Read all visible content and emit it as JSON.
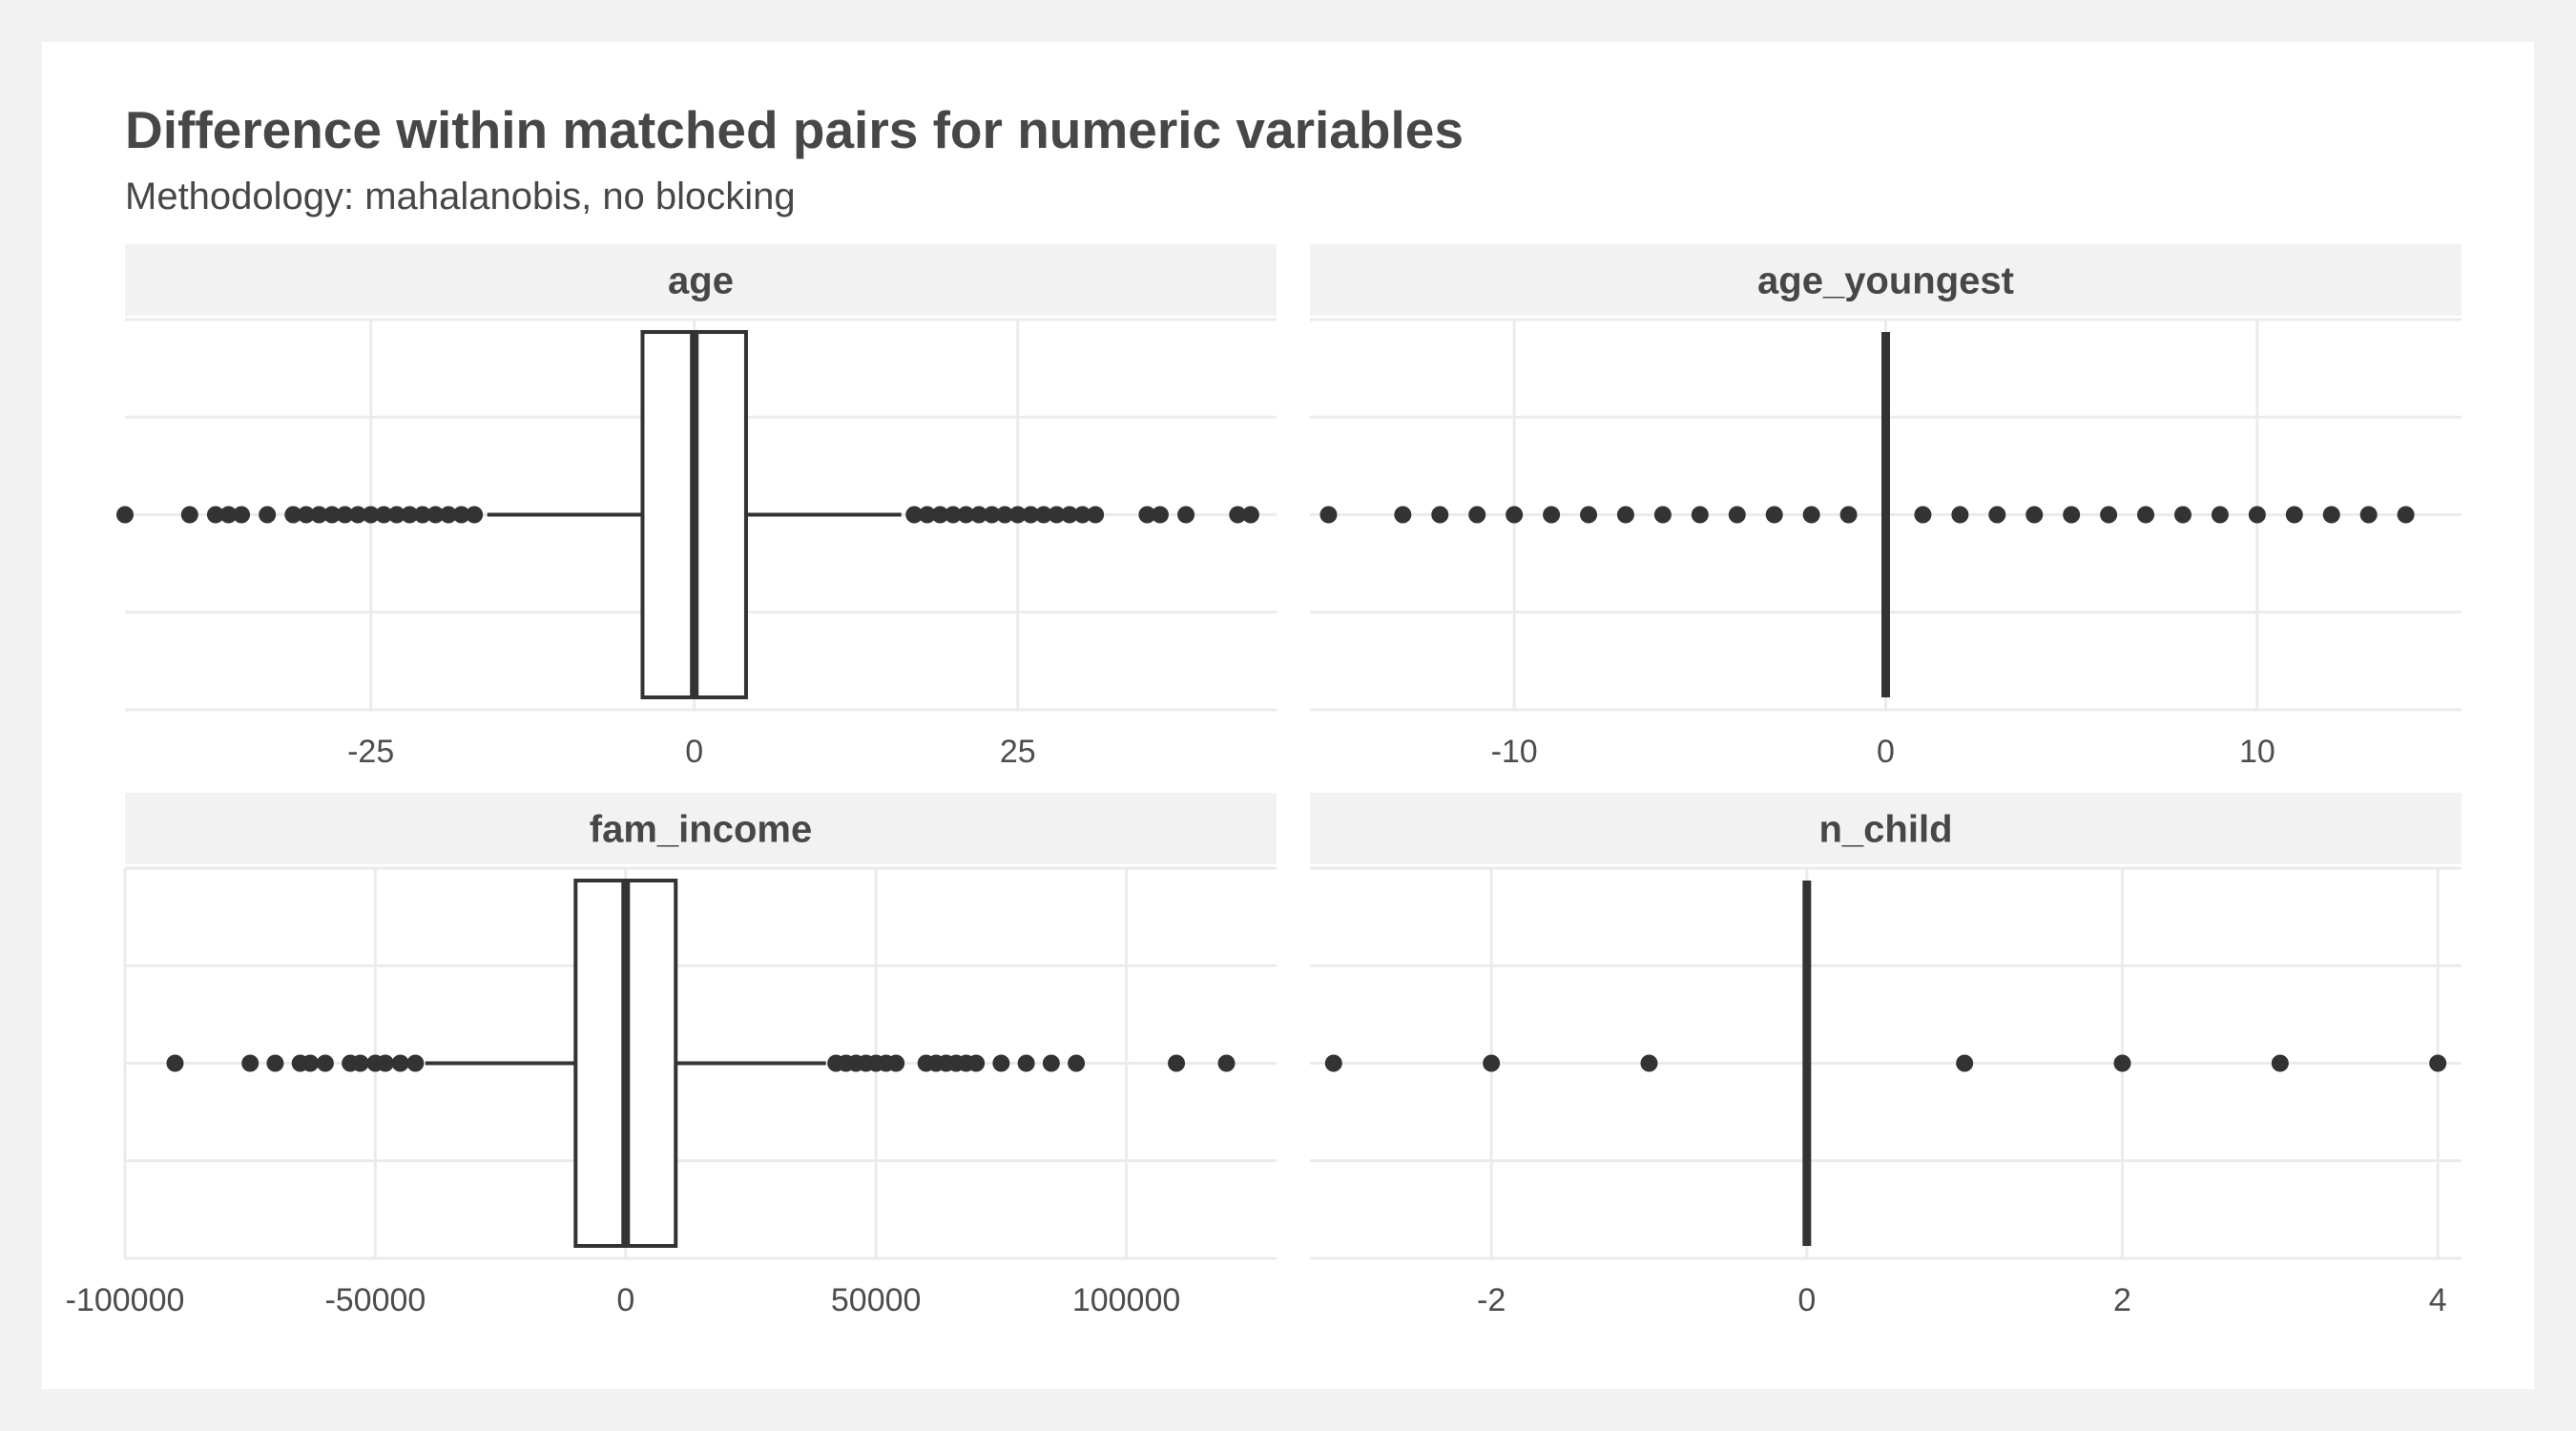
{
  "title": "Difference within matched pairs for numeric variables",
  "subtitle": "Methodology: mahalanobis, no blocking",
  "colors": {
    "background": "#f2f2f2",
    "panel": "#ffffff",
    "strip": "#f2f2f2",
    "grid": "#ebebeb",
    "ink": "#333333",
    "text": "#474747"
  },
  "chart_data": [
    {
      "type": "boxplot",
      "panel": "age",
      "xlim": [
        -44,
        45
      ],
      "ticks": [
        -25,
        0,
        25
      ],
      "tick_labels": [
        "-25",
        "0",
        "25"
      ],
      "box": {
        "q1": -4,
        "median": 0,
        "q3": 4,
        "whisker_low": -16,
        "whisker_high": 16
      },
      "outliers": [
        -44,
        -39,
        -37,
        -36,
        -35,
        -33,
        -31,
        -30,
        -29,
        -28,
        -27,
        -26,
        -25,
        -24,
        -23,
        -22,
        -21,
        -20,
        -19,
        -18,
        -17,
        17,
        18,
        19,
        20,
        21,
        22,
        23,
        24,
        25,
        26,
        27,
        28,
        29,
        30,
        31,
        35,
        36,
        38,
        42,
        43
      ]
    },
    {
      "type": "boxplot",
      "panel": "age_youngest",
      "xlim": [
        -15.5,
        15.5
      ],
      "ticks": [
        -10,
        0,
        10
      ],
      "tick_labels": [
        "-10",
        "0",
        "10"
      ],
      "box": {
        "q1": 0,
        "median": 0,
        "q3": 0,
        "whisker_low": 0,
        "whisker_high": 0
      },
      "outliers": [
        -15,
        -13,
        -12,
        -11,
        -10,
        -9,
        -8,
        -7,
        -6,
        -5,
        -4,
        -3,
        -2,
        -1,
        1,
        2,
        3,
        4,
        5,
        6,
        7,
        8,
        9,
        10,
        11,
        12,
        13,
        14
      ]
    },
    {
      "type": "boxplot",
      "panel": "fam_income",
      "xlim": [
        -100000,
        130000
      ],
      "ticks": [
        -100000,
        -50000,
        0,
        50000,
        100000
      ],
      "tick_labels": [
        "-100000",
        "-50000",
        "0",
        "50000",
        "100000"
      ],
      "box": {
        "q1": -10000,
        "median": 0,
        "q3": 10000,
        "whisker_low": -40000,
        "whisker_high": 40000
      },
      "outliers": [
        -90000,
        -75000,
        -70000,
        -65000,
        -63000,
        -60000,
        -55000,
        -53000,
        -50000,
        -48000,
        -45000,
        -42000,
        42000,
        44000,
        46000,
        48000,
        50000,
        52000,
        54000,
        60000,
        62000,
        64000,
        66000,
        68000,
        70000,
        75000,
        80000,
        85000,
        90000,
        110000,
        120000
      ]
    },
    {
      "type": "boxplot",
      "panel": "n_child",
      "xlim": [
        -3.15,
        4.15
      ],
      "ticks": [
        -2,
        0,
        2,
        4
      ],
      "tick_labels": [
        "-2",
        "0",
        "2",
        "4"
      ],
      "box": {
        "q1": 0,
        "median": 0,
        "q3": 0,
        "whisker_low": 0,
        "whisker_high": 0
      },
      "outliers": [
        -3,
        -2,
        -1,
        1,
        2,
        3,
        4
      ]
    }
  ]
}
